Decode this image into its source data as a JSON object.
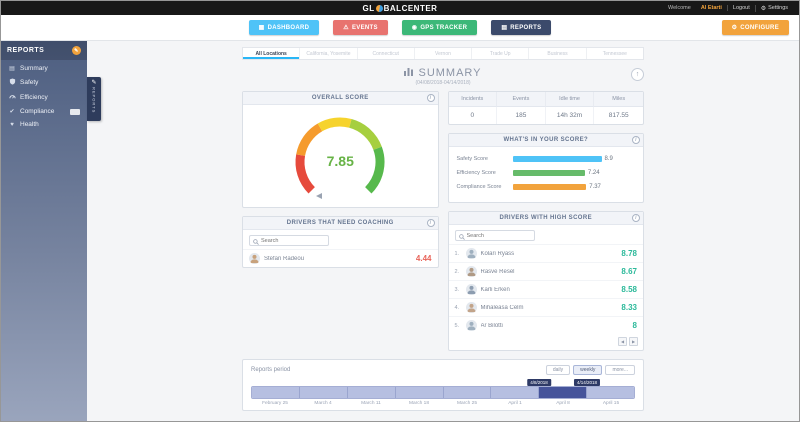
{
  "topbar": {
    "logo_pre": "GL",
    "logo_post": "BALCENTER",
    "welcome": "Welcome",
    "user": "Al Etarti",
    "logout": "Logout",
    "settings": "Settings"
  },
  "nav": {
    "dashboard": "DASHBOARD",
    "events": "EVENTS",
    "gps": "GPS TRACKER",
    "reports": "REPORTS",
    "configure": "CONFIGURE"
  },
  "colors": {
    "dashboard": "#4fc3f7",
    "events": "#e8736f",
    "gps": "#3cb878",
    "reports": "#3b4a6b",
    "configure": "#f2a33c",
    "high_score": "#2bb99a",
    "low_score": "#e8645a",
    "gauge_value": "#67b346",
    "timeline_active": "#46549b"
  },
  "icons": {
    "gear": "⚙",
    "dashboard_grid": "▦",
    "warning": "⚠",
    "pin": "◉",
    "bars": "▤",
    "pencil": "✎",
    "list": "▤",
    "check": "✔",
    "heart": "♥",
    "info": "i",
    "prev": "◀",
    "next": "▶",
    "up": "↑"
  },
  "sidebar": {
    "title": "REPORTS",
    "badge": "REPORTS",
    "items": [
      {
        "label": "Summary"
      },
      {
        "label": "Safety"
      },
      {
        "label": "Efficiency"
      },
      {
        "label": "Compliance"
      },
      {
        "label": "Health"
      }
    ]
  },
  "tabs": [
    "All Locations",
    "California, Yosemite",
    "Connecticut",
    "Vernon",
    "Trade Up",
    "Business",
    "Tennessee"
  ],
  "summary": {
    "title": "SUMMARY",
    "date_range": "(04/08/2018-04/14/2018)"
  },
  "overall_score": {
    "header": "OVERALL SCORE",
    "value": "7.85"
  },
  "stats": {
    "columns": [
      {
        "label": "Incidents",
        "value": "0"
      },
      {
        "label": "Events",
        "value": "185"
      },
      {
        "label": "Idle time",
        "value": "14h 32m"
      },
      {
        "label": "Miles",
        "value": "817.55"
      }
    ]
  },
  "score_breakdown": {
    "header": "WHAT'S IN YOUR SCORE?",
    "rows": [
      {
        "label": "Safety Score",
        "value": "8.9",
        "color": "#4fc3f7"
      },
      {
        "label": "Efficiency Score",
        "value": "7.24",
        "color": "#66bb6a"
      },
      {
        "label": "Compliance Score",
        "value": "7.37",
        "color": "#f2a33c"
      }
    ]
  },
  "coaching": {
    "header": "DRIVERS THAT NEED COACHING",
    "search_placeholder": "Search",
    "rows": [
      {
        "name": "Stefan Radeou",
        "score": "4.44"
      }
    ]
  },
  "high_score": {
    "header": "DRIVERS WITH HIGH SCORE",
    "search_placeholder": "Search",
    "rows": [
      {
        "rank": "1.",
        "name": "Kolari Ryass",
        "score": "8.78"
      },
      {
        "rank": "2.",
        "name": "Rasve Resel",
        "score": "8.67"
      },
      {
        "rank": "3.",
        "name": "Karli Erken",
        "score": "8.58"
      },
      {
        "rank": "4.",
        "name": "Mihaleasa Celm",
        "score": "8.33"
      },
      {
        "rank": "5.",
        "name": "Ar Bilotti",
        "score": "8"
      }
    ]
  },
  "timeline": {
    "title": "Reports period",
    "buttons": [
      "daily",
      "weekly",
      "more..."
    ],
    "start_tag": "4/8/2018",
    "end_tag": "4/14/2018",
    "axis_labels": [
      "February 25",
      "March 4",
      "March 11",
      "March 18",
      "March 25",
      "April 1",
      "April 8",
      "April 15"
    ]
  }
}
